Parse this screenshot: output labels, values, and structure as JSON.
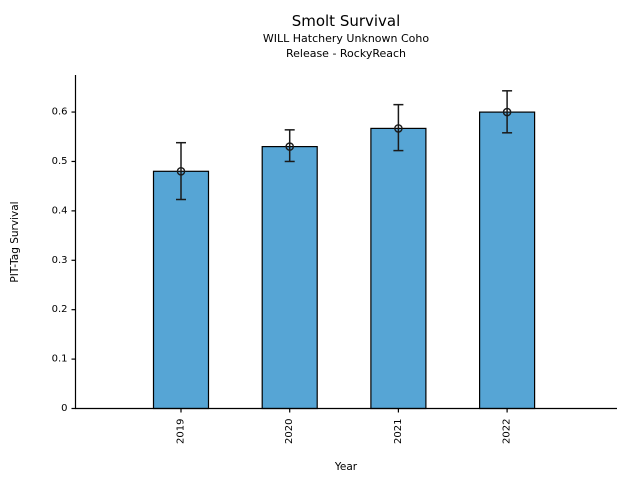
{
  "page": {
    "background": "#ffffff"
  },
  "chart_data": {
    "type": "bar",
    "title": "Smolt Survival",
    "subtitle1": "WILL Hatchery Unknown Coho",
    "subtitle2": "Release - RockyReach",
    "xlabel": "Year",
    "ylabel": "PIT-Tag Survival",
    "categories": [
      "2019",
      "2020",
      "2021",
      "2022"
    ],
    "values": [
      0.48,
      0.53,
      0.567,
      0.6
    ],
    "error_low": [
      0.423,
      0.5,
      0.522,
      0.558
    ],
    "error_high": [
      0.538,
      0.564,
      0.615,
      0.643
    ],
    "ytick_labels": [
      "0",
      "0.1",
      "0.2",
      "0.3",
      "0.4",
      "0.5",
      "0.6"
    ],
    "yticks": [
      0,
      0.1,
      0.2,
      0.3,
      0.4,
      0.5,
      0.6
    ],
    "ylim": [
      0,
      0.675
    ],
    "x_tick_rotation": 90,
    "grid": false,
    "legend": null,
    "bar_color": "#56A5D5",
    "bar_edge_color": "#000000",
    "error_color": "#1a1a1a",
    "marker": "open-circle",
    "axis_color": "#000000"
  }
}
